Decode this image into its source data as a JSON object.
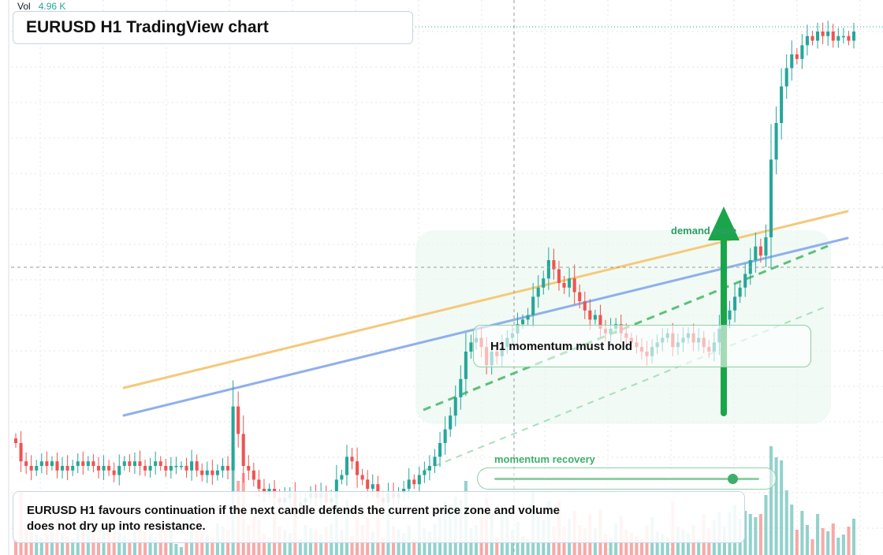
{
  "volume": {
    "label": "Vol",
    "value": "4.96 K"
  },
  "title": "EURUSD H1 TradingView chart",
  "callouts": {
    "momentum_hold": "H1 momentum must hold",
    "demand_zone": "demand zone",
    "momentum_recovery": "momentum recovery"
  },
  "slider": {
    "label": "momentum recovery",
    "value_fraction": 0.9
  },
  "summary": {
    "line1": "EURUSD H1 favours continuation if the next candle defends the current price zone and volume",
    "line2": "does not dry up into resistance."
  },
  "colors": {
    "up": "#26a69a",
    "down": "#ef5350",
    "upper_trendline": "#f5c97a",
    "lower_trendline": "#8fb0ea",
    "zone_fill": "#eaf7ee",
    "arrow": "#1aa54b",
    "grid": "#e6e6e6"
  },
  "chart_data": {
    "type": "candlestick",
    "symbol": "EURUSD",
    "timeframe": "H1",
    "closes": [
      0.1,
      0.06,
      0.05,
      0.04,
      0.05,
      0.06,
      0.05,
      0.06,
      0.04,
      0.05,
      0.04,
      0.05,
      0.06,
      0.05,
      0.06,
      0.05,
      0.04,
      0.05,
      0.04,
      0.03,
      0.05,
      0.06,
      0.05,
      0.06,
      0.05,
      0.04,
      0.05,
      0.06,
      0.05,
      0.04,
      0.05,
      0.05,
      0.05,
      0.04,
      0.06,
      0.04,
      0.03,
      0.04,
      0.03,
      0.04,
      0.05,
      0.04,
      0.18,
      0.12,
      0.05,
      0.04,
      0.02,
      0.0,
      -0.01,
      0.0,
      -0.02,
      -0.03,
      -0.02,
      -0.01,
      -0.04,
      -0.03,
      -0.02,
      -0.01,
      -0.02,
      -0.01,
      -0.03,
      -0.02,
      0.02,
      0.03,
      0.07,
      0.06,
      0.03,
      0.02,
      0.0,
      0.01,
      -0.02,
      -0.03,
      -0.01,
      -0.02,
      -0.01,
      0.0,
      0.02,
      0.01,
      0.03,
      0.04,
      0.05,
      0.07,
      0.1,
      0.13,
      0.16,
      0.2,
      0.24,
      0.3,
      0.32,
      0.33,
      0.31,
      0.27,
      0.3,
      0.29,
      0.31,
      0.33,
      0.34,
      0.36,
      0.37,
      0.38,
      0.42,
      0.44,
      0.46,
      0.5,
      0.48,
      0.45,
      0.44,
      0.46,
      0.43,
      0.41,
      0.39,
      0.37,
      0.38,
      0.35,
      0.34,
      0.35,
      0.36,
      0.34,
      0.33,
      0.32,
      0.31,
      0.3,
      0.29,
      0.31,
      0.32,
      0.33,
      0.34,
      0.31,
      0.32,
      0.33,
      0.34,
      0.32,
      0.33,
      0.31,
      0.3,
      0.32,
      0.35,
      0.37,
      0.39,
      0.42,
      0.44,
      0.47,
      0.5,
      0.53,
      0.51,
      0.55,
      0.72,
      0.8,
      0.88,
      0.92,
      0.95,
      0.94,
      0.97,
      0.99,
      0.98,
      1.0,
      0.99,
      1.0,
      0.98,
      0.99,
      0.99,
      0.98,
      1.0
    ]
  }
}
